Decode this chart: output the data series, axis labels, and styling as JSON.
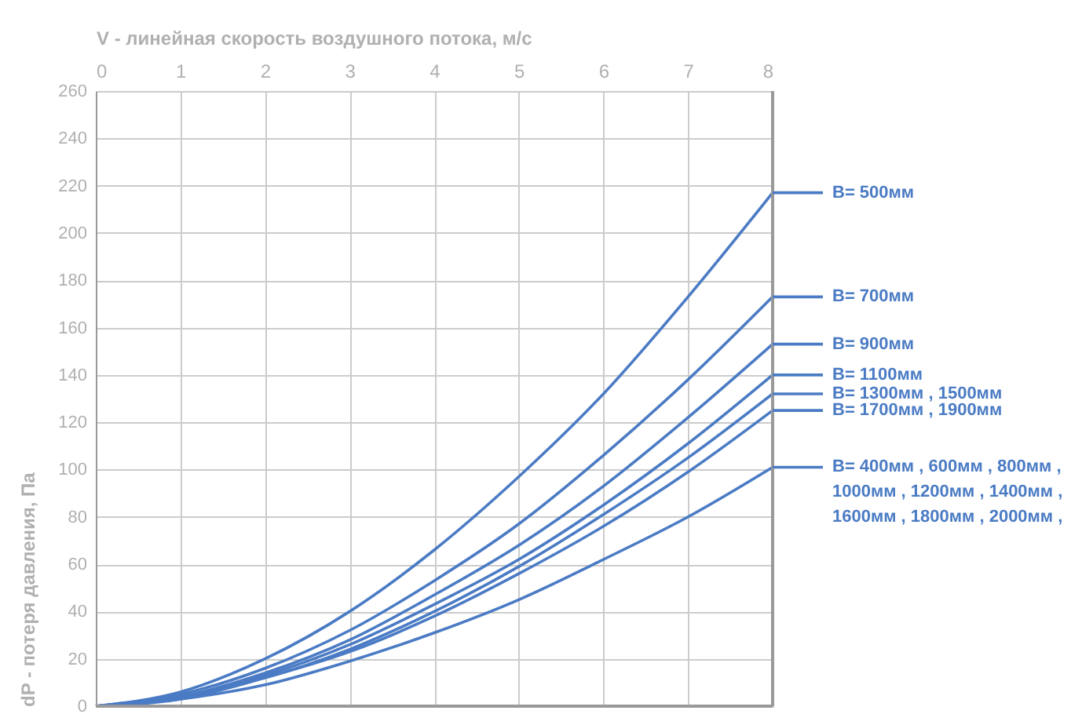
{
  "chart_data": {
    "type": "line",
    "xlabel": "V - линейная скорость воздушного потока, м/с",
    "ylabel": "dP - потеря давления, Па",
    "x": [
      0,
      1,
      2,
      3,
      4,
      5,
      6,
      7,
      8
    ],
    "xlim": [
      0,
      8
    ],
    "xticks": [
      0,
      1,
      2,
      3,
      4,
      5,
      6,
      7,
      8
    ],
    "ylim": [
      0,
      260
    ],
    "yticks": [
      0,
      20,
      40,
      60,
      80,
      100,
      120,
      140,
      160,
      180,
      200,
      220,
      240,
      260
    ],
    "grid": true,
    "marker": "none",
    "line_style": "solid",
    "legend": "right",
    "series": [
      {
        "name": "B=  500мм",
        "color": "#4a7bc4",
        "values": [
          0,
          6,
          20,
          40,
          66,
          97,
          132,
          173,
          217
        ]
      },
      {
        "name": "B=  700мм",
        "color": "#4a7bc4",
        "values": [
          0,
          5,
          16,
          32,
          53,
          77,
          106,
          138,
          173
        ]
      },
      {
        "name": "B=  900мм",
        "color": "#4a7bc4",
        "values": [
          0,
          4,
          14,
          28,
          47,
          68,
          93,
          122,
          153
        ]
      },
      {
        "name": "B=  1100мм",
        "color": "#4a7bc4",
        "values": [
          0,
          4,
          13,
          26,
          43,
          62,
          85,
          111,
          140
        ]
      },
      {
        "name": "B=  1300мм , 1500мм",
        "color": "#4a7bc4",
        "values": [
          0,
          4,
          12,
          24,
          40,
          59,
          81,
          105,
          132
        ]
      },
      {
        "name": "B=  1700мм , 1900мм",
        "color": "#4a7bc4",
        "values": [
          0,
          3,
          12,
          23,
          38,
          56,
          76,
          99,
          125
        ]
      },
      {
        "name": "B=  400мм , 600мм , 800мм ,\n1000мм , 1200мм , 1400мм ,\n1600мм , 1800мм , 2000мм ,",
        "color": "#4a7bc4",
        "values": [
          0,
          3,
          9,
          19,
          31,
          45,
          62,
          80,
          101
        ]
      }
    ]
  }
}
